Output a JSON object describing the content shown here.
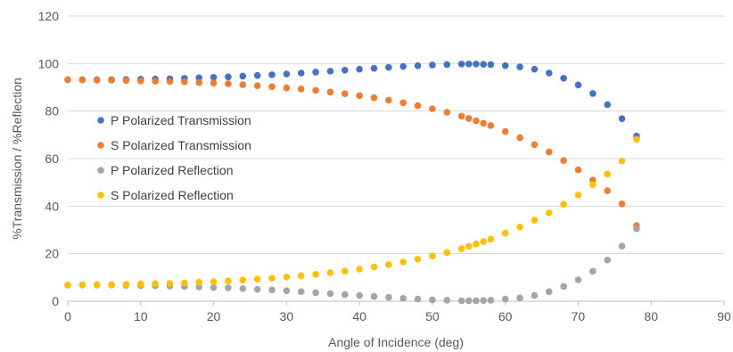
{
  "chart_data": {
    "type": "scatter",
    "xlabel": "Angle of Incidence (deg)",
    "ylabel": "%Transmission / %Reflection",
    "xlim": [
      0,
      90
    ],
    "ylim": [
      0,
      120
    ],
    "x_ticks": [
      "0",
      "10",
      "20",
      "30",
      "40",
      "50",
      "60",
      "70",
      "80",
      "90"
    ],
    "y_ticks": [
      "0",
      "20",
      "40",
      "60",
      "80",
      "100",
      "120"
    ],
    "grid": "horizontal",
    "legend_position": "left-center",
    "series": [
      {
        "name": "P Polarized Transmission",
        "color": "#4472C4",
        "x": [
          0,
          2,
          4,
          6,
          8,
          10,
          12,
          14,
          16,
          18,
          20,
          22,
          24,
          26,
          28,
          30,
          32,
          34,
          36,
          38,
          40,
          42,
          44,
          46,
          48,
          50,
          52,
          54,
          55,
          56,
          57,
          58,
          60,
          62,
          64,
          66,
          68,
          70,
          72,
          74,
          76,
          78
        ],
        "y": [
          93.2,
          93.2,
          93.2,
          93.2,
          93.3,
          93.4,
          93.5,
          93.6,
          93.8,
          94.0,
          94.2,
          94.4,
          94.7,
          95.0,
          95.3,
          95.6,
          96.0,
          96.4,
          96.8,
          97.2,
          97.6,
          98.0,
          98.4,
          98.8,
          99.1,
          99.4,
          99.6,
          99.8,
          99.8,
          99.8,
          99.7,
          99.6,
          99.1,
          98.6,
          97.6,
          96.0,
          93.8,
          91.0,
          87.4,
          82.7,
          76.8,
          69.5
        ]
      },
      {
        "name": "S Polarized Transmission",
        "color": "#ED7D31",
        "x": [
          0,
          2,
          4,
          6,
          8,
          10,
          12,
          14,
          16,
          18,
          20,
          22,
          24,
          26,
          28,
          30,
          32,
          34,
          36,
          38,
          40,
          42,
          44,
          46,
          48,
          50,
          52,
          54,
          55,
          56,
          57,
          58,
          60,
          62,
          64,
          66,
          68,
          70,
          72,
          74,
          76,
          78
        ],
        "y": [
          93.2,
          93.1,
          93.0,
          93.0,
          92.9,
          92.7,
          92.6,
          92.5,
          92.3,
          92.0,
          91.8,
          91.5,
          91.1,
          90.7,
          90.3,
          89.8,
          89.3,
          88.7,
          88.0,
          87.3,
          86.5,
          85.6,
          84.6,
          83.5,
          82.3,
          81.0,
          79.5,
          77.9,
          76.9,
          75.9,
          74.9,
          73.9,
          71.4,
          68.8,
          65.9,
          62.8,
          59.2,
          55.3,
          51.0,
          46.5,
          41.0,
          31.8
        ]
      },
      {
        "name": "P Polarized Reflection",
        "color": "#A5A5A5",
        "x": [
          0,
          2,
          4,
          6,
          8,
          10,
          12,
          14,
          16,
          18,
          20,
          22,
          24,
          26,
          28,
          30,
          32,
          34,
          36,
          38,
          40,
          42,
          44,
          46,
          48,
          50,
          52,
          54,
          55,
          56,
          57,
          58,
          60,
          62,
          64,
          66,
          68,
          70,
          72,
          74,
          76,
          78
        ],
        "y": [
          6.8,
          6.8,
          6.8,
          6.8,
          6.7,
          6.6,
          6.5,
          6.4,
          6.2,
          6.0,
          5.8,
          5.6,
          5.3,
          5.0,
          4.7,
          4.4,
          4.0,
          3.6,
          3.2,
          2.8,
          2.4,
          2.0,
          1.6,
          1.2,
          0.9,
          0.6,
          0.4,
          0.2,
          0.2,
          0.2,
          0.3,
          0.4,
          0.9,
          1.4,
          2.4,
          4.0,
          6.2,
          9.0,
          12.6,
          17.3,
          23.2,
          30.5
        ]
      },
      {
        "name": "S Polarized Reflection",
        "color": "#FFC000",
        "x": [
          0,
          2,
          4,
          6,
          8,
          10,
          12,
          14,
          16,
          18,
          20,
          22,
          24,
          26,
          28,
          30,
          32,
          34,
          36,
          38,
          40,
          42,
          44,
          46,
          48,
          50,
          52,
          54,
          55,
          56,
          57,
          58,
          60,
          62,
          64,
          66,
          68,
          70,
          72,
          74,
          76,
          78
        ],
        "y": [
          6.8,
          6.9,
          7.0,
          7.0,
          7.1,
          7.3,
          7.4,
          7.5,
          7.7,
          8.0,
          8.2,
          8.5,
          8.9,
          9.3,
          9.7,
          10.2,
          10.7,
          11.3,
          12.0,
          12.7,
          13.5,
          14.4,
          15.4,
          16.5,
          17.7,
          19.0,
          20.5,
          22.1,
          23.1,
          24.1,
          25.1,
          26.1,
          28.6,
          31.2,
          34.1,
          37.2,
          40.8,
          44.7,
          49.0,
          53.5,
          59.0,
          68.2
        ]
      }
    ]
  }
}
